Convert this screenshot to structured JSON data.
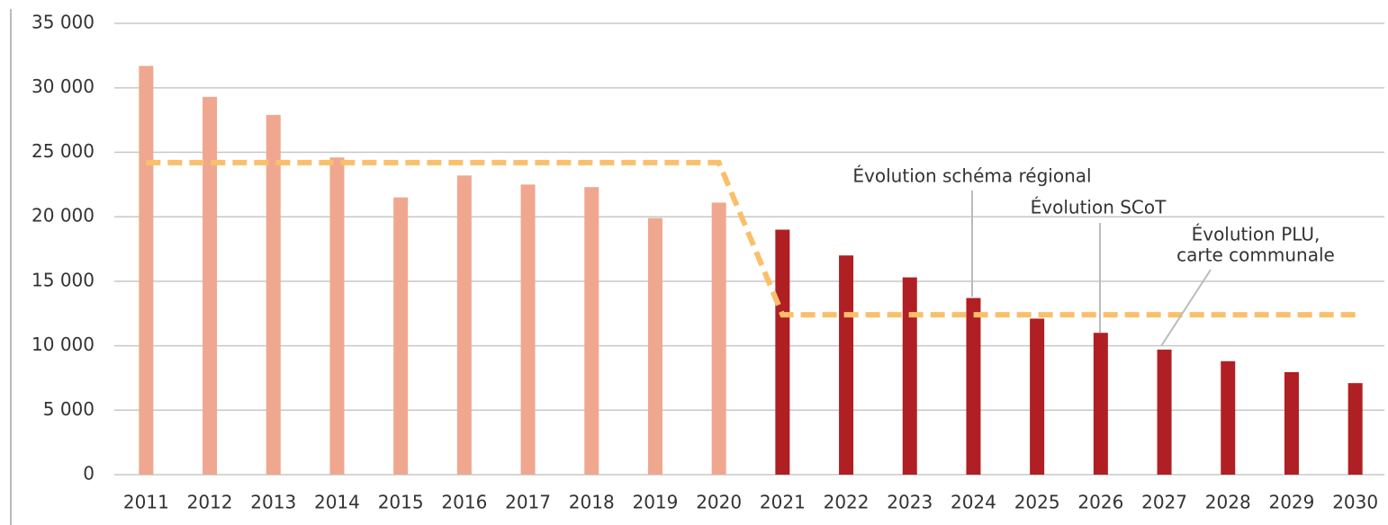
{
  "chart_data": {
    "type": "bar",
    "categories": [
      "2011",
      "2012",
      "2013",
      "2014",
      "2015",
      "2016",
      "2017",
      "2018",
      "2019",
      "2020",
      "2021",
      "2022",
      "2023",
      "2024",
      "2025",
      "2026",
      "2027",
      "2028",
      "2029",
      "2030"
    ],
    "series": [
      {
        "color": "#f0a78f",
        "values": [
          31700,
          29300,
          27900,
          24600,
          21500,
          23200,
          22500,
          22300,
          19900,
          21100,
          null,
          null,
          null,
          null,
          null,
          null,
          null,
          null,
          null,
          null
        ]
      },
      {
        "color": "#b01f24",
        "values": [
          null,
          null,
          null,
          null,
          null,
          null,
          null,
          null,
          null,
          null,
          19000,
          17000,
          15300,
          13700,
          12100,
          11000,
          9700,
          8800,
          7950,
          7100
        ]
      },
      {
        "type": "line",
        "dashed": true,
        "color": "#fbbf6a",
        "values": [
          24200,
          24200,
          24200,
          24200,
          24200,
          24200,
          24200,
          24200,
          24200,
          24200,
          12400,
          12400,
          12400,
          12400,
          12400,
          12400,
          12400,
          12400,
          12400,
          12400
        ]
      }
    ],
    "ylim": [
      0,
      35000
    ],
    "yticks": [
      0,
      {
        "value": 5000,
        "label": "5 000"
      },
      {
        "value": 10000,
        "label": "10 000"
      },
      {
        "value": 15000,
        "label": "15 000"
      },
      {
        "value": 20000,
        "label": "20 000"
      },
      {
        "value": 25000,
        "label": "25 000"
      },
      {
        "value": 30000,
        "label": "30 000"
      },
      {
        "value": 35000,
        "label": "35 000"
      }
    ],
    "grid": true,
    "annotations": [
      "Évolution schéma régional",
      "Évolution SCoT",
      "Évolution PLU,",
      "carte communale"
    ]
  }
}
